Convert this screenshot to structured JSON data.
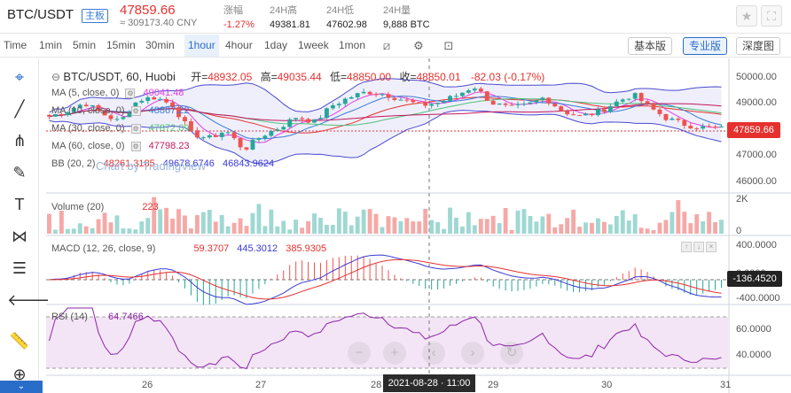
{
  "header": {
    "symbol": "BTC/USDT",
    "tag": "主板",
    "price": "47859.66",
    "cny": "≈ 309173.40 CNY",
    "stats": [
      {
        "label": "涨幅",
        "value": "-1.27%",
        "red": true
      },
      {
        "label": "24H高",
        "value": "49381.81",
        "red": false
      },
      {
        "label": "24H低",
        "value": "47602.98",
        "red": false
      },
      {
        "label": "24H量",
        "value": "9,888 BTC",
        "red": false
      }
    ],
    "icons": [
      "star-icon",
      "fullscreen-icon"
    ]
  },
  "intervals": {
    "items": [
      "Time",
      "1min",
      "5min",
      "15min",
      "30min",
      "1hour",
      "4hour",
      "1day",
      "1week",
      "1mon"
    ],
    "active": "1hour",
    "views": [
      "基本版",
      "专业版",
      "深度图"
    ],
    "active_view": "专业版"
  },
  "legend": {
    "pair": "BTC/USDT, 60, Huobi",
    "open_label": "开=",
    "open": "48932.05",
    "high_label": "高=",
    "high": "49035.44",
    "low_label": "低=",
    "low": "48850.00",
    "close_label": "收=",
    "close": "48850.01",
    "change": "-82.03 (-0.17%)"
  },
  "indicators": {
    "ma5": {
      "label": "MA (5, close, 0)",
      "value": "49041.48",
      "color": "#e43ee0"
    },
    "ma10": {
      "label": "MA (10, close, 0)",
      "value": "48867.22",
      "color": "#3a7bd5"
    },
    "ma30": {
      "label": "MA (30, close, 0)",
      "value": "47872.09",
      "color": "#4fc27a"
    },
    "ma60": {
      "label": "MA (60, close, 0)",
      "value": "47798.23",
      "color": "#c2185b"
    },
    "bb": {
      "label": "BB (20, 2)",
      "values": [
        "48261.3185",
        "49678.6746",
        "46843.9624"
      ],
      "color": "#e5312e"
    },
    "watermark": "Chart by TradingView"
  },
  "volume": {
    "label": "Volume (20)",
    "value": "223"
  },
  "macd": {
    "label": "MACD (12, 26, close, 9)",
    "values": [
      "59.3707",
      "445.3012",
      "385.9305"
    ]
  },
  "rsi": {
    "label": "RSI (14)",
    "value": "64.7466"
  },
  "axis": {
    "price_ticks": [
      "50000.00",
      "49000.00",
      "48000.00",
      "47000.00",
      "46000.00"
    ],
    "current_price": "47859.66",
    "volume_ticks": [
      "2K",
      "0"
    ],
    "macd_ticks": [
      "400.0000",
      "0.0000",
      "-400.0000"
    ],
    "macd_current": "-136.4520",
    "rsi_ticks": [
      "60.0000",
      "40.0000"
    ],
    "dates": [
      "26",
      "27",
      "28",
      "29",
      "30",
      "31"
    ],
    "crosshair_date": "2021-08-28 · 11:00"
  },
  "chart_data": {
    "type": "candlestick",
    "title": "BTC/USDT, 60, Huobi",
    "ylim": [
      45600,
      50400
    ],
    "x_labels": [
      "26",
      "27",
      "28",
      "29",
      "30",
      "31"
    ],
    "anchors_close": [
      48300,
      48500,
      48800,
      48400,
      48100,
      48900,
      49000,
      48700,
      47700,
      47500,
      47800,
      47100,
      47600,
      47900,
      48300,
      48100,
      48700,
      49000,
      49200,
      49100,
      48900,
      48700,
      48800,
      49050,
      49400,
      48800,
      48600,
      48700,
      49000,
      48500,
      48300,
      48450,
      48800,
      49100,
      48600,
      48200,
      48000,
      47900,
      47860
    ],
    "volume_range": [
      0,
      2000
    ],
    "macd_range": [
      -500,
      500
    ],
    "rsi_range": [
      20,
      80
    ]
  }
}
